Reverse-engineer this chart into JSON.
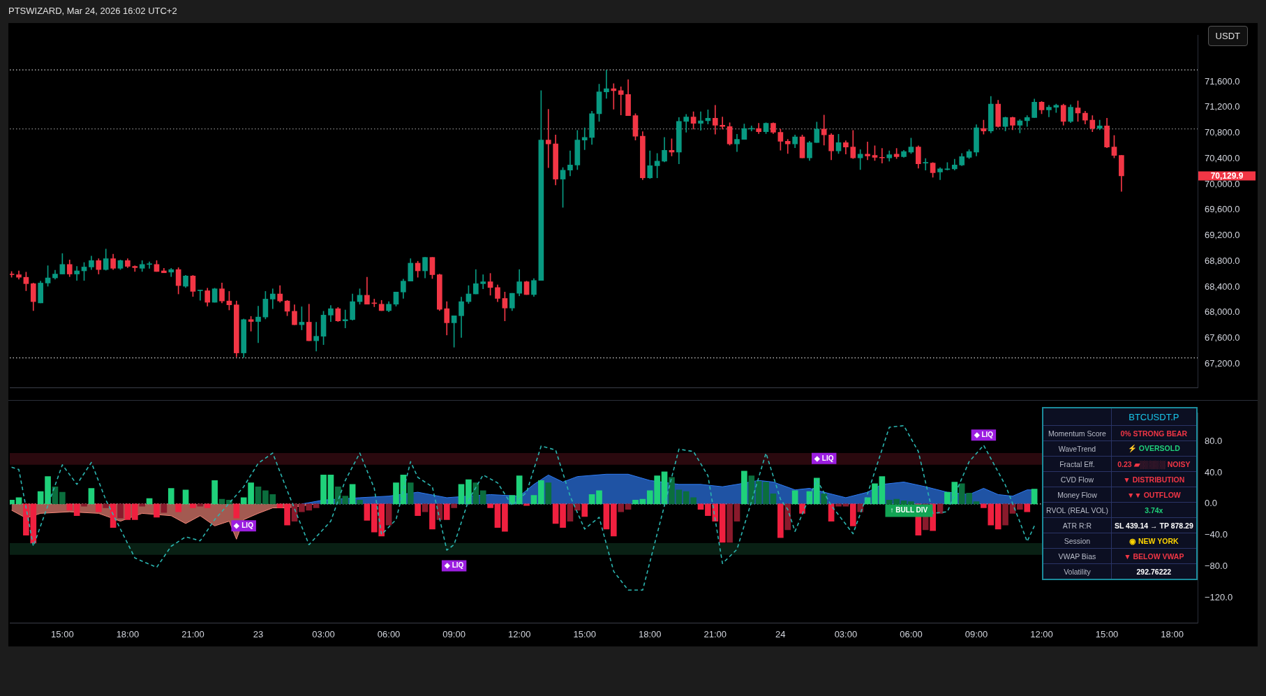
{
  "chart_data": [
    {
      "type": "candlestick",
      "title": "PTSWIZARD, Mar 24, 2026 16:02 UTC+2",
      "ylabel": "USDT",
      "x": [
        "2026-03-22T12:40",
        "2026-03-22T13:00",
        "2026-03-22T13:20",
        "2026-03-22T13:40",
        "2026-03-22T14:00",
        "2026-03-22T14:20",
        "2026-03-22T14:40",
        "2026-03-22T15:00",
        "2026-03-22T15:20",
        "2026-03-22T15:40",
        "2026-03-22T16:00",
        "2026-03-22T16:20",
        "2026-03-22T16:40",
        "2026-03-22T17:00",
        "2026-03-22T17:20",
        "2026-03-22T17:40",
        "2026-03-22T18:00",
        "2026-03-22T18:20",
        "2026-03-22T18:40",
        "2026-03-22T19:00",
        "2026-03-22T19:20",
        "2026-03-22T19:40",
        "2026-03-22T20:00",
        "2026-03-22T20:20",
        "2026-03-22T20:40",
        "2026-03-22T21:00",
        "2026-03-22T21:20",
        "2026-03-22T21:40",
        "2026-03-22T22:00",
        "2026-03-22T22:20",
        "2026-03-22T22:40",
        "2026-03-22T23:00",
        "2026-03-22T23:20",
        "2026-03-22T23:40",
        "2026-03-23T00:00",
        "2026-03-23T00:20",
        "2026-03-23T00:40",
        "2026-03-23T01:00",
        "2026-03-23T01:20",
        "2026-03-23T01:40",
        "2026-03-23T02:00",
        "2026-03-23T02:20",
        "2026-03-23T02:40",
        "2026-03-23T03:00",
        "2026-03-23T03:20",
        "2026-03-23T03:40",
        "2026-03-23T04:00",
        "2026-03-23T04:20",
        "2026-03-23T04:40",
        "2026-03-23T05:00",
        "2026-03-23T05:20",
        "2026-03-23T05:40",
        "2026-03-23T06:00",
        "2026-03-23T06:20",
        "2026-03-23T06:40",
        "2026-03-23T07:00",
        "2026-03-23T07:20",
        "2026-03-23T07:40",
        "2026-03-23T08:00",
        "2026-03-23T08:20",
        "2026-03-23T08:40",
        "2026-03-23T09:00",
        "2026-03-23T09:20",
        "2026-03-23T09:40",
        "2026-03-23T10:00",
        "2026-03-23T10:20",
        "2026-03-23T10:40",
        "2026-03-23T11:00",
        "2026-03-23T11:20",
        "2026-03-23T11:40",
        "2026-03-23T12:00",
        "2026-03-23T12:20",
        "2026-03-23T12:40",
        "2026-03-23T13:00",
        "2026-03-23T13:20",
        "2026-03-23T13:40",
        "2026-03-23T14:00",
        "2026-03-23T14:20",
        "2026-03-23T14:40",
        "2026-03-23T15:00",
        "2026-03-23T15:20",
        "2026-03-23T15:40",
        "2026-03-23T16:00",
        "2026-03-23T16:20",
        "2026-03-23T16:40",
        "2026-03-23T17:00",
        "2026-03-23T17:20",
        "2026-03-23T17:40",
        "2026-03-23T18:00",
        "2026-03-23T18:20",
        "2026-03-23T18:40",
        "2026-03-23T19:00",
        "2026-03-23T19:20",
        "2026-03-23T19:40",
        "2026-03-23T20:00",
        "2026-03-23T20:20",
        "2026-03-23T20:40",
        "2026-03-23T21:00",
        "2026-03-23T21:20",
        "2026-03-23T21:40",
        "2026-03-23T22:00",
        "2026-03-23T22:20",
        "2026-03-23T22:40",
        "2026-03-23T23:00",
        "2026-03-23T23:20",
        "2026-03-23T23:40",
        "2026-03-24T00:00",
        "2026-03-24T00:20",
        "2026-03-24T00:40",
        "2026-03-24T01:00",
        "2026-03-24T01:20",
        "2026-03-24T01:40",
        "2026-03-24T02:00",
        "2026-03-24T02:20",
        "2026-03-24T02:40",
        "2026-03-24T03:00",
        "2026-03-24T03:20",
        "2026-03-24T03:40",
        "2026-03-24T04:00",
        "2026-03-24T04:20",
        "2026-03-24T04:40",
        "2026-03-24T05:00",
        "2026-03-24T05:20",
        "2026-03-24T05:40",
        "2026-03-24T06:00",
        "2026-03-24T06:20",
        "2026-03-24T06:40",
        "2026-03-24T07:00",
        "2026-03-24T07:20",
        "2026-03-24T07:40",
        "2026-03-24T08:00",
        "2026-03-24T08:20",
        "2026-03-24T08:40",
        "2026-03-24T09:00",
        "2026-03-24T09:20",
        "2026-03-24T09:40",
        "2026-03-24T10:00",
        "2026-03-24T10:20",
        "2026-03-24T10:40",
        "2026-03-24T11:00",
        "2026-03-24T11:20",
        "2026-03-24T11:40",
        "2026-03-24T12:00",
        "2026-03-24T12:20",
        "2026-03-24T12:40",
        "2026-03-24T13:00",
        "2026-03-24T13:20",
        "2026-03-24T13:40",
        "2026-03-24T14:00",
        "2026-03-24T14:20",
        "2026-03-24T14:40",
        "2026-03-24T15:00",
        "2026-03-24T15:20",
        "2026-03-24T15:40"
      ],
      "ohlc": [
        [
          68600,
          68640,
          68550,
          68590
        ],
        [
          68590,
          68650,
          68520,
          68550
        ],
        [
          68550,
          68630,
          68340,
          68450
        ],
        [
          68450,
          68460,
          68030,
          68170
        ],
        [
          68150,
          68490,
          68150,
          68460
        ],
        [
          68460,
          68730,
          68410,
          68540
        ],
        [
          68540,
          68660,
          68520,
          68600
        ],
        [
          68600,
          68920,
          68600,
          68750
        ],
        [
          68750,
          68820,
          68560,
          68600
        ],
        [
          68600,
          68720,
          68500,
          68650
        ],
        [
          68650,
          68780,
          68500,
          68710
        ],
        [
          68710,
          68880,
          68670,
          68810
        ],
        [
          68810,
          68840,
          68600,
          68670
        ],
        [
          68670,
          68990,
          68660,
          68840
        ],
        [
          68840,
          68910,
          68670,
          68690
        ],
        [
          68690,
          68820,
          68670,
          68810
        ],
        [
          68810,
          68840,
          68700,
          68720
        ],
        [
          68720,
          68730,
          68640,
          68700
        ],
        [
          68690,
          68810,
          68640,
          68750
        ],
        [
          68750,
          68790,
          68690,
          68760
        ],
        [
          68750,
          68810,
          68640,
          68640
        ],
        [
          68650,
          68690,
          68620,
          68620
        ],
        [
          68630,
          68690,
          68560,
          68670
        ],
        [
          68670,
          68700,
          68290,
          68420
        ],
        [
          68410,
          68580,
          68390,
          68570
        ],
        [
          68570,
          68580,
          68250,
          68330
        ],
        [
          68340,
          68350,
          68190,
          68350
        ],
        [
          68340,
          68380,
          68100,
          68160
        ],
        [
          68160,
          68380,
          68160,
          68370
        ],
        [
          68370,
          68460,
          68150,
          68180
        ],
        [
          68180,
          68330,
          68040,
          68120
        ],
        [
          68120,
          68180,
          67310,
          67370
        ],
        [
          67370,
          67900,
          67300,
          67890
        ],
        [
          67890,
          67940,
          67710,
          67860
        ],
        [
          67860,
          68100,
          67530,
          67930
        ],
        [
          67930,
          68330,
          67900,
          68210
        ],
        [
          68210,
          68370,
          68060,
          68290
        ],
        [
          68290,
          68420,
          68160,
          68180
        ],
        [
          68180,
          68190,
          67950,
          68020
        ],
        [
          68020,
          68120,
          67810,
          67810
        ],
        [
          67810,
          68090,
          67730,
          67850
        ],
        [
          67850,
          68130,
          67560,
          67560
        ],
        [
          67560,
          67850,
          67400,
          67630
        ],
        [
          67630,
          68020,
          67500,
          67960
        ],
        [
          67960,
          68110,
          67860,
          68060
        ],
        [
          68060,
          68080,
          67860,
          67870
        ],
        [
          67870,
          68040,
          67760,
          67890
        ],
        [
          67890,
          68290,
          67880,
          68170
        ],
        [
          68170,
          68370,
          68130,
          68270
        ],
        [
          68270,
          68550,
          68130,
          68130
        ],
        [
          68150,
          68210,
          68090,
          68140
        ],
        [
          68130,
          68190,
          68030,
          68030
        ],
        [
          68030,
          68170,
          68010,
          68130
        ],
        [
          68130,
          68320,
          68100,
          68320
        ],
        [
          68320,
          68520,
          68220,
          68490
        ],
        [
          68490,
          68840,
          68490,
          68770
        ],
        [
          68770,
          68800,
          68550,
          68650
        ],
        [
          68650,
          68860,
          68540,
          68860
        ],
        [
          68860,
          68860,
          68530,
          68590
        ],
        [
          68590,
          68600,
          68030,
          68050
        ],
        [
          68060,
          68170,
          67650,
          67840
        ],
        [
          67840,
          67950,
          67460,
          67950
        ],
        [
          67950,
          68240,
          67610,
          68170
        ],
        [
          68170,
          68420,
          68140,
          68290
        ],
        [
          68290,
          68670,
          68290,
          68450
        ],
        [
          68450,
          68590,
          68370,
          68480
        ],
        [
          68480,
          68610,
          68270,
          68390
        ],
        [
          68390,
          68430,
          68170,
          68220
        ],
        [
          68220,
          68320,
          67870,
          68070
        ],
        [
          68070,
          68300,
          68030,
          68300
        ],
        [
          68300,
          68670,
          68260,
          68480
        ],
        [
          68480,
          68490,
          68280,
          68280
        ],
        [
          68280,
          68530,
          68250,
          68500
        ],
        [
          68500,
          71460,
          68500,
          70690
        ],
        [
          70690,
          71170,
          70260,
          70630
        ],
        [
          70630,
          70770,
          69990,
          70080
        ],
        [
          70080,
          70260,
          69640,
          70220
        ],
        [
          70220,
          70520,
          70130,
          70300
        ],
        [
          70300,
          70840,
          70230,
          70690
        ],
        [
          70690,
          70880,
          70540,
          70730
        ],
        [
          70730,
          71140,
          70620,
          71100
        ],
        [
          71100,
          71560,
          70980,
          71440
        ],
        [
          71440,
          71780,
          71340,
          71490
        ],
        [
          71490,
          71570,
          71170,
          71460
        ],
        [
          71460,
          71520,
          71080,
          71400
        ],
        [
          71400,
          71630,
          71070,
          71070
        ],
        [
          71070,
          71100,
          70690,
          70750
        ],
        [
          70750,
          70820,
          70070,
          70100
        ],
        [
          70100,
          70520,
          70090,
          70290
        ],
        [
          70290,
          70480,
          70100,
          70360
        ],
        [
          70360,
          70730,
          70350,
          70530
        ],
        [
          70530,
          70710,
          70440,
          70500
        ],
        [
          70500,
          71040,
          70320,
          70980
        ],
        [
          70980,
          71090,
          70810,
          71050
        ],
        [
          71050,
          71130,
          70860,
          70950
        ],
        [
          70950,
          71130,
          70840,
          70990
        ],
        [
          70990,
          71160,
          70940,
          71030
        ],
        [
          71030,
          71230,
          70780,
          70920
        ],
        [
          70920,
          71050,
          70860,
          70900
        ],
        [
          70900,
          70960,
          70610,
          70630
        ],
        [
          70630,
          70780,
          70510,
          70700
        ],
        [
          70700,
          70940,
          70700,
          70870
        ],
        [
          70860,
          70910,
          70830,
          70870
        ],
        [
          70870,
          70950,
          70790,
          70820
        ],
        [
          70820,
          70960,
          70790,
          70950
        ],
        [
          70950,
          70960,
          70790,
          70810
        ],
        [
          70810,
          70860,
          70530,
          70670
        ],
        [
          70670,
          70700,
          70480,
          70630
        ],
        [
          70630,
          70770,
          70570,
          70740
        ],
        [
          70740,
          70770,
          70410,
          70410
        ],
        [
          70410,
          70670,
          70370,
          70650
        ],
        [
          70650,
          70970,
          70650,
          70860
        ],
        [
          70860,
          71080,
          70610,
          70770
        ],
        [
          70770,
          70790,
          70380,
          70520
        ],
        [
          70520,
          70780,
          70480,
          70650
        ],
        [
          70650,
          70680,
          70470,
          70580
        ],
        [
          70580,
          70840,
          70400,
          70410
        ],
        [
          70410,
          70540,
          70230,
          70470
        ],
        [
          70470,
          70660,
          70380,
          70440
        ],
        [
          70450,
          70600,
          70370,
          70420
        ],
        [
          70420,
          70560,
          70330,
          70410
        ],
        [
          70410,
          70520,
          70360,
          70460
        ],
        [
          70470,
          70560,
          70400,
          70430
        ],
        [
          70430,
          70530,
          70420,
          70510
        ],
        [
          70500,
          70720,
          70480,
          70580
        ],
        [
          70580,
          70600,
          70250,
          70320
        ],
        [
          70330,
          70400,
          70220,
          70340
        ],
        [
          70330,
          70340,
          70110,
          70180
        ],
        [
          70190,
          70260,
          70070,
          70240
        ],
        [
          70230,
          70340,
          70220,
          70240
        ],
        [
          70240,
          70390,
          70220,
          70300
        ],
        [
          70300,
          70480,
          70290,
          70430
        ],
        [
          70420,
          70540,
          70400,
          70510
        ],
        [
          70500,
          70930,
          70440,
          70880
        ],
        [
          70870,
          71000,
          70780,
          70830
        ],
        [
          70830,
          71370,
          70800,
          71250
        ],
        [
          71250,
          71310,
          70890,
          70900
        ],
        [
          70900,
          71050,
          70830,
          71040
        ],
        [
          71040,
          71050,
          70850,
          70920
        ],
        [
          70920,
          71010,
          70800,
          70990
        ],
        [
          70990,
          71070,
          70900,
          71040
        ],
        [
          71040,
          71330,
          71040,
          71280
        ],
        [
          71280,
          71290,
          71100,
          71160
        ],
        [
          71160,
          71230,
          71050,
          71200
        ],
        [
          71200,
          71250,
          71120,
          71230
        ],
        [
          71230,
          71250,
          70920,
          70980
        ],
        [
          70980,
          71240,
          70960,
          71200
        ],
        [
          71190,
          71300,
          70980,
          71110
        ],
        [
          71110,
          71140,
          70940,
          71000
        ],
        [
          71000,
          71070,
          70820,
          70870
        ],
        [
          70870,
          71000,
          70850,
          70910
        ],
        [
          70910,
          71030,
          70570,
          70580
        ],
        [
          70580,
          70760,
          70410,
          70450
        ],
        [
          70450,
          70450,
          69890,
          70129.9
        ]
      ],
      "xlim": [
        "2026-03-22T12:35",
        "2026-03-24T19:10"
      ],
      "ylim": [
        66830,
        72320
      ],
      "yticks": [
        {
          "value": 67200,
          "label": "67,200.0"
        },
        {
          "value": 67600,
          "label": "67,600.0"
        },
        {
          "value": 68000,
          "label": "68,000.0"
        },
        {
          "value": 68400,
          "label": "68,400.0"
        },
        {
          "value": 68800,
          "label": "68,800.0"
        },
        {
          "value": 69200,
          "label": "69,200.0"
        },
        {
          "value": 69600,
          "label": "69,600.0"
        },
        {
          "value": 70000,
          "label": "70,000.0"
        },
        {
          "value": 70400,
          "label": "70,400.0"
        },
        {
          "value": 70800,
          "label": "70,800.0"
        },
        {
          "value": 71200,
          "label": "71,200.0"
        },
        {
          "value": 71600,
          "label": "71,600.0"
        }
      ],
      "tick_labels": "y",
      "ref_lines": [
        {
          "axis": "y",
          "value": 71784,
          "color": "#cfcfcf",
          "line_style": "dotted"
        },
        {
          "axis": "y",
          "value": 70863,
          "color": "#8a8a8a",
          "line_style": "dotted"
        },
        {
          "axis": "y",
          "value": 67293,
          "color": "#cfcfcf",
          "line_style": "dotted"
        }
      ],
      "annotations": [
        "70,129.9"
      ]
    },
    {
      "type": "bar",
      "x": [
        "2026-03-22T12:40",
        "2026-03-22T13:00",
        "2026-03-22T13:20",
        "2026-03-22T13:40",
        "2026-03-22T14:00",
        "2026-03-22T14:20",
        "2026-03-22T14:40",
        "2026-03-22T15:00",
        "2026-03-22T15:20",
        "2026-03-22T15:40",
        "2026-03-22T16:00",
        "2026-03-22T16:20",
        "2026-03-22T16:40",
        "2026-03-22T17:00",
        "2026-03-22T17:20",
        "2026-03-22T17:40",
        "2026-03-22T18:00",
        "2026-03-22T18:20",
        "2026-03-22T18:40",
        "2026-03-22T19:00",
        "2026-03-22T19:20",
        "2026-03-22T19:40",
        "2026-03-22T20:00",
        "2026-03-22T20:20",
        "2026-03-22T20:40",
        "2026-03-22T21:00",
        "2026-03-22T21:20",
        "2026-03-22T21:40",
        "2026-03-22T22:00",
        "2026-03-22T22:20",
        "2026-03-22T22:40",
        "2026-03-22T23:00",
        "2026-03-22T23:20",
        "2026-03-22T23:40",
        "2026-03-23T00:00",
        "2026-03-23T00:20",
        "2026-03-23T00:40",
        "2026-03-23T01:00",
        "2026-03-23T01:20",
        "2026-03-23T01:40",
        "2026-03-23T02:00",
        "2026-03-23T02:20",
        "2026-03-23T02:40",
        "2026-03-23T03:00",
        "2026-03-23T03:20",
        "2026-03-23T03:40",
        "2026-03-23T04:00",
        "2026-03-23T04:20",
        "2026-03-23T04:40",
        "2026-03-23T05:00",
        "2026-03-23T05:20",
        "2026-03-23T05:40",
        "2026-03-23T06:00",
        "2026-03-23T06:20",
        "2026-03-23T06:40",
        "2026-03-23T07:00",
        "2026-03-23T07:20",
        "2026-03-23T07:40",
        "2026-03-23T08:00",
        "2026-03-23T08:20",
        "2026-03-23T08:40",
        "2026-03-23T09:00",
        "2026-03-23T09:20",
        "2026-03-23T09:40",
        "2026-03-23T10:00",
        "2026-03-23T10:20",
        "2026-03-23T10:40",
        "2026-03-23T11:00",
        "2026-03-23T11:20",
        "2026-03-23T11:40",
        "2026-03-23T12:00",
        "2026-03-23T12:20",
        "2026-03-23T12:40",
        "2026-03-23T13:00",
        "2026-03-23T13:20",
        "2026-03-23T13:40",
        "2026-03-23T14:00",
        "2026-03-23T14:20",
        "2026-03-23T14:40",
        "2026-03-23T15:00",
        "2026-03-23T15:20",
        "2026-03-23T15:40",
        "2026-03-23T16:00",
        "2026-03-23T16:20",
        "2026-03-23T16:40",
        "2026-03-23T17:00",
        "2026-03-23T17:20",
        "2026-03-23T17:40",
        "2026-03-23T18:00",
        "2026-03-23T18:20",
        "2026-03-23T18:40",
        "2026-03-23T19:00",
        "2026-03-23T19:20",
        "2026-03-23T19:40",
        "2026-03-23T20:00",
        "2026-03-23T20:20",
        "2026-03-23T20:40",
        "2026-03-23T21:00",
        "2026-03-23T21:20",
        "2026-03-23T21:40",
        "2026-03-23T22:00",
        "2026-03-23T22:20",
        "2026-03-23T22:40",
        "2026-03-23T23:00",
        "2026-03-23T23:20",
        "2026-03-23T23:40",
        "2026-03-24T00:00",
        "2026-03-24T00:20",
        "2026-03-24T00:40",
        "2026-03-24T01:00",
        "2026-03-24T01:20",
        "2026-03-24T01:40",
        "2026-03-24T02:00",
        "2026-03-24T02:20",
        "2026-03-24T02:40",
        "2026-03-24T03:00",
        "2026-03-24T03:20",
        "2026-03-24T03:40",
        "2026-03-24T04:00",
        "2026-03-24T04:20",
        "2026-03-24T04:40",
        "2026-03-24T05:00",
        "2026-03-24T05:20",
        "2026-03-24T05:40",
        "2026-03-24T06:00",
        "2026-03-24T06:20",
        "2026-03-24T06:40",
        "2026-03-24T07:00",
        "2026-03-24T07:20",
        "2026-03-24T07:40",
        "2026-03-24T08:00",
        "2026-03-24T08:20",
        "2026-03-24T08:40",
        "2026-03-24T09:00",
        "2026-03-24T09:20",
        "2026-03-24T09:40",
        "2026-03-24T10:00",
        "2026-03-24T10:20",
        "2026-03-24T10:40",
        "2026-03-24T11:00",
        "2026-03-24T11:20",
        "2026-03-24T11:40"
      ],
      "series": [
        {
          "type": "bar",
          "values": [
            5,
            8,
            -40,
            -50,
            16,
            35,
            22,
            15,
            -8,
            -15,
            -3,
            20,
            -10,
            -5,
            -30,
            -18,
            -20,
            -20,
            -3,
            7,
            -17,
            -11,
            20,
            -10,
            18,
            -5,
            -3,
            -5,
            30,
            6,
            5,
            -18,
            8,
            27,
            22,
            17,
            12,
            -5,
            -27,
            -22,
            -10,
            -8,
            -5,
            37,
            37,
            22,
            10,
            25,
            5,
            -21,
            -36,
            -41,
            -27,
            27,
            37,
            27,
            -15,
            -10,
            -32,
            -20,
            -20,
            -5,
            25,
            31,
            27,
            17,
            -5,
            -30,
            -35,
            11,
            36,
            -2,
            11,
            30,
            27,
            -25,
            -30,
            -22,
            -8,
            -16,
            12,
            17,
            -32,
            -41,
            -10,
            -7,
            5,
            6,
            17,
            36,
            41,
            34,
            18,
            16,
            8,
            -7,
            -15,
            -22,
            -49,
            -49,
            -22,
            42,
            36,
            29,
            28,
            13,
            -43,
            -33,
            17,
            -12,
            16,
            33,
            13,
            -22,
            -3,
            -3,
            -28,
            -10,
            8,
            26,
            35,
            5,
            6,
            4,
            3,
            -40,
            -33,
            -34,
            -12,
            15,
            28,
            26,
            14,
            3,
            -5,
            -27,
            -32,
            -27,
            -12,
            -7,
            -10,
            19
          ],
          "colors": [
            "#1fd17a",
            "#1fd17a",
            "#f0203f",
            "#f0203f",
            "#1fd17a",
            "#1fd17a",
            "#0b6e3d",
            "#0b6e3d",
            "#f0203f",
            "#f0203f",
            "#8a1a2c",
            "#1fd17a",
            "#f0203f",
            "#8a1a2c",
            "#f0203f",
            "#8a1a2c",
            "#f0203f",
            "#f0203f",
            "#8a1a2c",
            "#1fd17a",
            "#f0203f",
            "#8a1a2c",
            "#1fd17a",
            "#f0203f",
            "#1fd17a",
            "#f0203f",
            "#8a1a2c",
            "#f0203f",
            "#1fd17a",
            "#0b6e3d",
            "#0b6e3d",
            "#f0203f",
            "#1fd17a",
            "#1fd17a",
            "#0b6e3d",
            "#0b6e3d",
            "#0b6e3d",
            "#f0203f",
            "#f0203f",
            "#8a1a2c",
            "#8a1a2c",
            "#8a1a2c",
            "#8a1a2c",
            "#1fd17a",
            "#1fd17a",
            "#0b6e3d",
            "#0b6e3d",
            "#1fd17a",
            "#0b6e3d",
            "#f0203f",
            "#f0203f",
            "#f0203f",
            "#8a1a2c",
            "#1fd17a",
            "#1fd17a",
            "#0b6e3d",
            "#f0203f",
            "#8a1a2c",
            "#f0203f",
            "#8a1a2c",
            "#f0203f",
            "#8a1a2c",
            "#1fd17a",
            "#1fd17a",
            "#0b6e3d",
            "#0b6e3d",
            "#f0203f",
            "#f0203f",
            "#f0203f",
            "#1fd17a",
            "#1fd17a",
            "#f0203f",
            "#1fd17a",
            "#1fd17a",
            "#0b6e3d",
            "#f0203f",
            "#f0203f",
            "#8a1a2c",
            "#8a1a2c",
            "#f0203f",
            "#1fd17a",
            "#1fd17a",
            "#f0203f",
            "#f0203f",
            "#8a1a2c",
            "#8a1a2c",
            "#1fd17a",
            "#1fd17a",
            "#1fd17a",
            "#1fd17a",
            "#1fd17a",
            "#0b6e3d",
            "#0b6e3d",
            "#0b6e3d",
            "#0b6e3d",
            "#f0203f",
            "#f0203f",
            "#f0203f",
            "#f0203f",
            "#8a1a2c",
            "#8a1a2c",
            "#1fd17a",
            "#0b6e3d",
            "#0b6e3d",
            "#0b6e3d",
            "#0b6e3d",
            "#f0203f",
            "#8a1a2c",
            "#1fd17a",
            "#f0203f",
            "#1fd17a",
            "#1fd17a",
            "#0b6e3d",
            "#f0203f",
            "#8a1a2c",
            "#8a1a2c",
            "#f0203f",
            "#8a1a2c",
            "#1fd17a",
            "#1fd17a",
            "#1fd17a",
            "#0b6e3d",
            "#0b6e3d",
            "#0b6e3d",
            "#0b6e3d",
            "#f0203f",
            "#8a1a2c",
            "#f0203f",
            "#8a1a2c",
            "#1fd17a",
            "#1fd17a",
            "#0b6e3d",
            "#0b6e3d",
            "#0b6e3d",
            "#f0203f",
            "#f0203f",
            "#f0203f",
            "#8a1a2c",
            "#8a1a2c",
            "#8a1a2c",
            "#f0203f",
            "#1fd17a"
          ]
        },
        {
          "type": "area",
          "color": "#2e7cf6",
          "x": [
            "2026-03-23T02:00",
            "2026-03-23T03:00",
            "2026-03-23T04:40",
            "2026-03-23T06:00",
            "2026-03-23T07:20",
            "2026-03-23T08:40",
            "2026-03-23T10:40",
            "2026-03-23T12:00",
            "2026-03-23T12:40",
            "2026-03-23T13:20",
            "2026-03-23T14:00",
            "2026-03-23T14:40",
            "2026-03-23T16:00",
            "2026-03-23T17:00",
            "2026-03-23T18:00",
            "2026-03-23T19:20",
            "2026-03-23T20:20",
            "2026-03-23T21:20",
            "2026-03-23T22:00",
            "2026-03-23T23:00",
            "2026-03-23T23:40",
            "2026-03-24T00:40",
            "2026-03-24T01:20",
            "2026-03-24T02:00",
            "2026-03-24T03:00",
            "2026-03-24T04:00",
            "2026-03-24T04:40",
            "2026-03-24T05:40",
            "2026-03-24T06:40",
            "2026-03-24T07:40",
            "2026-03-24T08:40",
            "2026-03-24T09:20",
            "2026-03-24T10:00",
            "2026-03-24T10:40",
            "2026-03-24T11:20",
            "2026-03-24T11:40"
          ],
          "values": [
            0,
            5,
            8,
            10,
            15,
            8,
            12,
            10,
            25,
            37,
            28,
            35,
            38,
            38,
            30,
            25,
            25,
            22,
            25,
            30,
            28,
            18,
            20,
            15,
            8,
            15,
            25,
            28,
            22,
            15,
            12,
            20,
            12,
            10,
            18,
            18
          ]
        },
        {
          "type": "area",
          "color": "#f4877a",
          "x": [
            "2026-03-22T12:40",
            "2026-03-22T13:20",
            "2026-03-22T14:00",
            "2026-03-22T15:20",
            "2026-03-22T16:40",
            "2026-03-22T17:40",
            "2026-03-22T18:40",
            "2026-03-22T20:00",
            "2026-03-22T20:40",
            "2026-03-22T21:20",
            "2026-03-22T22:00",
            "2026-03-22T22:40",
            "2026-03-22T23:00",
            "2026-03-22T23:20",
            "2026-03-23T00:00",
            "2026-03-23T00:40",
            "2026-03-23T01:20",
            "2026-03-23T02:40"
          ],
          "values": [
            -8,
            -18,
            -12,
            -10,
            -12,
            -22,
            -12,
            -15,
            -25,
            -15,
            -28,
            -22,
            -45,
            -20,
            -12,
            -5,
            -5,
            0
          ]
        },
        {
          "type": "line",
          "color": "#2bb5b0",
          "line_style": "dashed",
          "x": [
            "2026-03-22T12:40",
            "2026-03-22T13:00",
            "2026-03-22T13:40",
            "2026-03-22T15:00",
            "2026-03-22T15:40",
            "2026-03-22T16:20",
            "2026-03-22T17:00",
            "2026-03-22T18:20",
            "2026-03-22T19:20",
            "2026-03-22T20:00",
            "2026-03-22T20:40",
            "2026-03-22T21:20",
            "2026-03-22T22:00",
            "2026-03-22T23:20",
            "2026-03-23T00:00",
            "2026-03-23T00:40",
            "2026-03-23T01:20",
            "2026-03-23T02:20",
            "2026-03-23T03:20",
            "2026-03-23T04:00",
            "2026-03-23T04:40",
            "2026-03-23T05:20",
            "2026-03-23T05:40",
            "2026-03-23T06:20",
            "2026-03-23T07:00",
            "2026-03-23T07:20",
            "2026-03-23T08:00",
            "2026-03-23T08:40",
            "2026-03-23T09:00",
            "2026-03-23T09:40",
            "2026-03-23T10:20",
            "2026-03-23T11:00",
            "2026-03-23T11:40",
            "2026-03-23T12:20",
            "2026-03-23T13:00",
            "2026-03-23T13:40",
            "2026-03-23T14:20",
            "2026-03-23T15:00",
            "2026-03-23T15:40",
            "2026-03-23T16:20",
            "2026-03-23T17:00",
            "2026-03-23T17:40",
            "2026-03-23T19:20",
            "2026-03-23T20:00",
            "2026-03-23T20:40",
            "2026-03-23T21:20",
            "2026-03-23T22:00",
            "2026-03-23T22:40",
            "2026-03-23T23:20",
            "2026-03-24T00:00",
            "2026-03-24T00:20",
            "2026-03-24T00:40",
            "2026-03-24T01:40",
            "2026-03-24T02:20",
            "2026-03-24T03:20",
            "2026-03-24T04:00",
            "2026-03-24T05:00",
            "2026-03-24T05:40",
            "2026-03-24T06:20",
            "2026-03-24T07:00",
            "2026-03-24T07:40",
            "2026-03-24T08:40",
            "2026-03-24T09:20",
            "2026-03-24T10:20",
            "2026-03-24T11:00",
            "2026-03-24T11:20",
            "2026-03-24T11:40"
          ],
          "values": [
            47,
            44,
            -54,
            50,
            25,
            53,
            5,
            -69,
            -81,
            -54,
            -42,
            -47,
            -20,
            22,
            52,
            65,
            17,
            -52,
            -22,
            30,
            65,
            20,
            -39,
            -20,
            54,
            34,
            22,
            -59,
            -52,
            5,
            37,
            27,
            -2,
            15,
            74,
            69,
            10,
            -32,
            -17,
            -86,
            -110,
            -110,
            70,
            67,
            36,
            -76,
            -58,
            3,
            65,
            6,
            -7,
            -35,
            31,
            -2,
            -38,
            13,
            98,
            100,
            67,
            -12,
            -10,
            54,
            75,
            24,
            -23,
            -48,
            -28
          ]
        }
      ],
      "xlim": [
        "2026-03-22T12:35",
        "2026-03-24T19:10"
      ],
      "xticks": [
        {
          "value": "2026-03-22T15:00",
          "label": "15:00"
        },
        {
          "value": "2026-03-22T18:00",
          "label": "18:00"
        },
        {
          "value": "2026-03-22T21:00",
          "label": "21:00"
        },
        {
          "value": "2026-03-23T00:00",
          "label": "23"
        },
        {
          "value": "2026-03-23T03:00",
          "label": "03:00"
        },
        {
          "value": "2026-03-23T06:00",
          "label": "06:00"
        },
        {
          "value": "2026-03-23T09:00",
          "label": "09:00"
        },
        {
          "value": "2026-03-23T12:00",
          "label": "12:00"
        },
        {
          "value": "2026-03-23T15:00",
          "label": "15:00"
        },
        {
          "value": "2026-03-23T18:00",
          "label": "18:00"
        },
        {
          "value": "2026-03-23T21:00",
          "label": "21:00"
        },
        {
          "value": "2026-03-24T00:00",
          "label": "24"
        },
        {
          "value": "2026-03-24T03:00",
          "label": "03:00"
        },
        {
          "value": "2026-03-24T06:00",
          "label": "06:00"
        },
        {
          "value": "2026-03-24T09:00",
          "label": "09:00"
        },
        {
          "value": "2026-03-24T12:00",
          "label": "12:00"
        },
        {
          "value": "2026-03-24T15:00",
          "label": "15:00"
        },
        {
          "value": "2026-03-24T18:00",
          "label": "18:00"
        }
      ],
      "ylim": [
        -152,
        116
      ],
      "yticks": [
        {
          "value": -120,
          "label": "−120.0"
        },
        {
          "value": -80,
          "label": "−80.0"
        },
        {
          "value": -40,
          "label": "−40.0"
        },
        {
          "value": 0,
          "label": "0.0"
        },
        {
          "value": 40,
          "label": "40.0"
        },
        {
          "value": 80,
          "label": "80.0"
        }
      ],
      "ref_lines": [
        {
          "axis": "y",
          "value": 0,
          "color": "#d0d0d0",
          "line_style": "dotted"
        }
      ],
      "bands": [
        {
          "axis": "y",
          "from": 50,
          "to": 65,
          "color": "#e0304a"
        },
        {
          "axis": "y",
          "from": -65,
          "to": -50,
          "color": "#2ea86a"
        }
      ],
      "annotations": [
        {
          "text": "◆ LIQ",
          "x": "2026-03-22T23:20",
          "y": -28
        },
        {
          "text": "◆ LIQ",
          "x": "2026-03-23T09:00",
          "y": -79
        },
        {
          "text": "◆ LIQ",
          "x": "2026-03-24T02:00",
          "y": 58
        },
        {
          "text": "◆ LIQ",
          "x": "2026-03-24T09:20",
          "y": 88
        },
        "↑ BULL DIV"
      ]
    },
    {
      "type": "other",
      "title": "BTCUSDT.P",
      "annotations": [
        "Momentum Score",
        "0% STRONG BEAR",
        "WaveTrend",
        "⚡ OVERSOLD",
        "Fractal Eff.",
        "0.23 ▰░░░░░ NOISY",
        "CVD Flow",
        "▼ DISTRIBUTION",
        "Money Flow",
        "▼▼ OUTFLOW",
        "RVOL (REAL VOL)",
        "3.74x",
        "ATR R:R",
        "SL 439.14 → TP 878.29",
        "Session",
        "◉ NEW YORK",
        "VWAP Bias",
        "▼ BELOW VWAP",
        "Volatility",
        "292.76222"
      ],
      "colors": [
        "#f23645",
        "#1fd17a",
        "#f23645",
        "#f23645",
        "#f23645",
        "#1fd17a",
        "#ffffff",
        "#ffd600",
        "#f23645",
        "#ffffff"
      ]
    }
  ]
}
